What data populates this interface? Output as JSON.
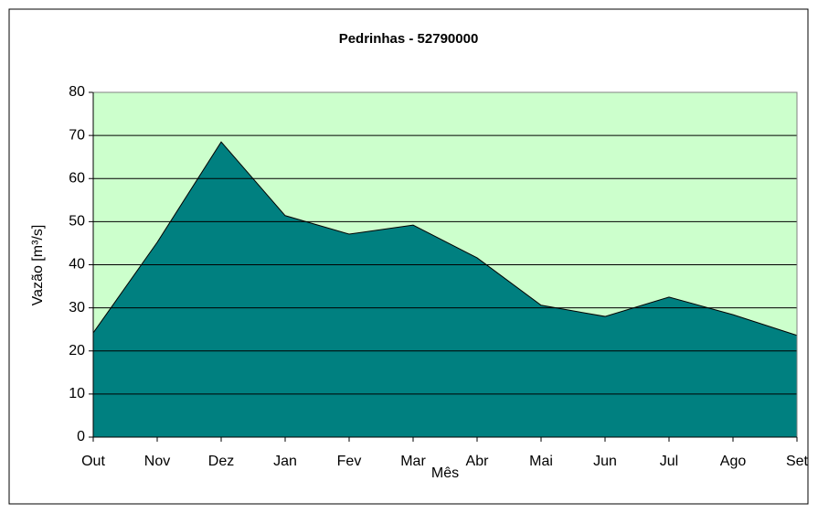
{
  "chart_data": {
    "type": "area",
    "title": "Pedrinhas - 52790000",
    "x_label": "Mês",
    "y_label": "Vazão [m³/s]",
    "categories": [
      "Out",
      "Nov",
      "Dez",
      "Jan",
      "Fev",
      "Mar",
      "Abr",
      "Mai",
      "Jun",
      "Jul",
      "Ago",
      "Set"
    ],
    "series": [
      {
        "name": "Vazão",
        "color": "#008080",
        "values": [
          24.2,
          45.2,
          68.5,
          51.4,
          47.1,
          49.2,
          41.6,
          30.6,
          28.0,
          32.5,
          28.4,
          23.6
        ]
      }
    ],
    "ylim": [
      0,
      80
    ],
    "yticks": [
      0,
      10,
      20,
      30,
      40,
      50,
      60,
      70,
      80
    ],
    "grid": true,
    "plot_background": "#ccffcc"
  }
}
